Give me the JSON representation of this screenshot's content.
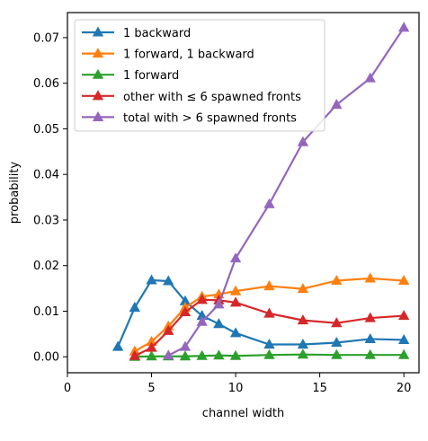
{
  "chart_data": {
    "type": "line",
    "xlabel": "channel width",
    "ylabel": "probability",
    "xlim": [
      0,
      20.9
    ],
    "ylim": [
      -0.0035,
      0.0755
    ],
    "xticks": [
      0,
      5,
      10,
      15,
      20
    ],
    "yticks": [
      0.0,
      0.01,
      0.02,
      0.03,
      0.04,
      0.05,
      0.06,
      0.07
    ],
    "ytick_labels": [
      "0.00",
      "0.01",
      "0.02",
      "0.03",
      "0.04",
      "0.05",
      "0.06",
      "0.07"
    ],
    "legend_position": "upper-left",
    "marker": "triangle-up",
    "series": [
      {
        "name": "1 backward",
        "color": "#1f77b4",
        "x": [
          3,
          4,
          5,
          6,
          7,
          8,
          9,
          10,
          12,
          14,
          16,
          18,
          20
        ],
        "y": [
          0.0022,
          0.0108,
          0.0168,
          0.0166,
          0.0122,
          0.009,
          0.0072,
          0.0052,
          0.0027,
          0.0027,
          0.0031,
          0.0039,
          0.0037
        ]
      },
      {
        "name": "1 forward, 1 backward",
        "color": "#ff7f0e",
        "x": [
          4,
          5,
          6,
          7,
          8,
          9,
          10,
          12,
          14,
          16,
          18,
          20
        ],
        "y": [
          0.0012,
          0.0033,
          0.0067,
          0.0108,
          0.0132,
          0.0137,
          0.0144,
          0.0155,
          0.0149,
          0.0167,
          0.0172,
          0.0167
        ]
      },
      {
        "name": "1 forward",
        "color": "#2ca02c",
        "x": [
          4,
          5,
          6,
          7,
          8,
          9,
          10,
          12,
          14,
          16,
          18,
          20
        ],
        "y": [
          0.0,
          0.0001,
          0.0001,
          0.0001,
          0.0002,
          0.0003,
          0.0002,
          0.0004,
          0.0005,
          0.0004,
          0.0004,
          0.0004
        ]
      },
      {
        "name": "other with ≤ 6 spawned fronts",
        "color": "#d62728",
        "x": [
          4,
          5,
          6,
          7,
          8,
          9,
          10,
          12,
          14,
          16,
          18,
          20
        ],
        "y": [
          0.0002,
          0.002,
          0.0057,
          0.0098,
          0.0125,
          0.0124,
          0.0119,
          0.0095,
          0.008,
          0.0074,
          0.0085,
          0.009
        ]
      },
      {
        "name": "total with > 6 spawned fronts",
        "color": "#9467bd",
        "x": [
          6,
          7,
          8,
          9,
          10,
          12,
          14,
          16,
          18,
          20
        ],
        "y": [
          0.0003,
          0.0022,
          0.0077,
          0.0115,
          0.0216,
          0.0335,
          0.0471,
          0.0553,
          0.0611,
          0.0722
        ]
      }
    ]
  }
}
